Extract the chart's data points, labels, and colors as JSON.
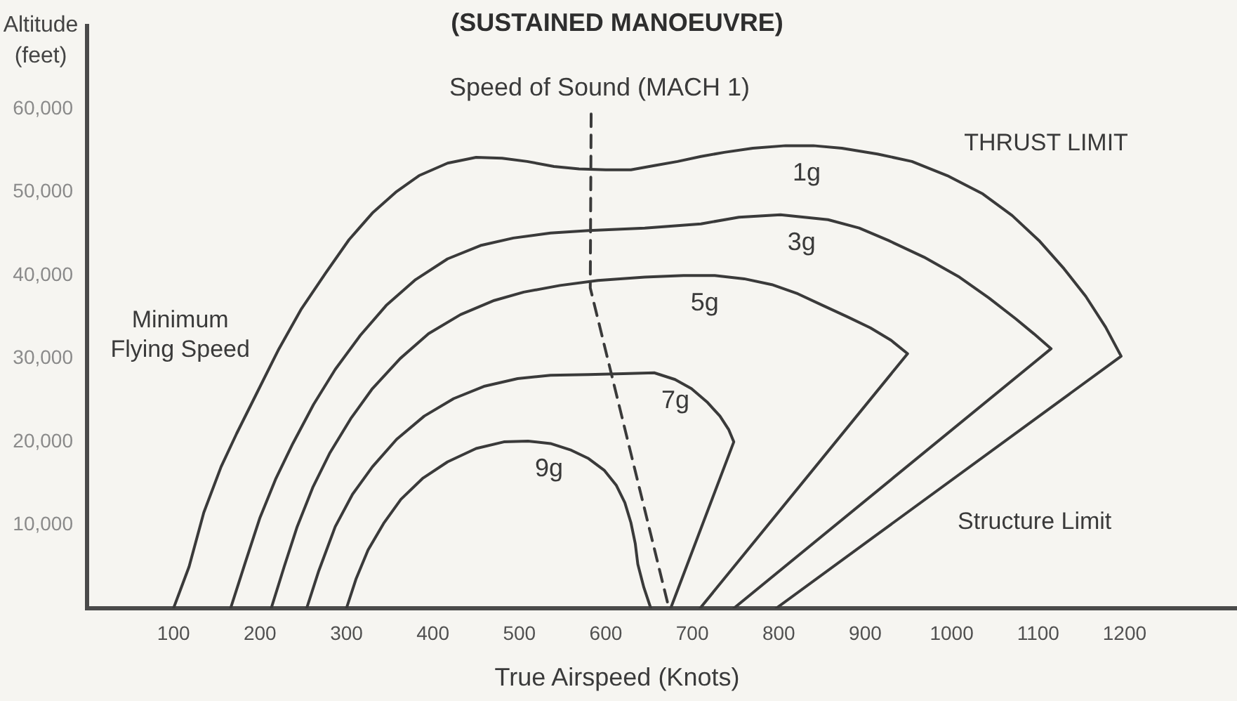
{
  "chart_data": {
    "type": "line",
    "title": "(SUSTAINED MANOEUVRE)",
    "xlabel": "True Airspeed (Knots)",
    "ylabel": "Altitude (feet)",
    "xlim": [
      0,
      1330
    ],
    "ylim": [
      0,
      70000
    ],
    "xticks": [
      100,
      200,
      300,
      400,
      500,
      600,
      700,
      800,
      900,
      1000,
      1100,
      1200
    ],
    "yticks": [
      {
        "value": 10000,
        "label": "10,000"
      },
      {
        "value": 20000,
        "label": "20,000"
      },
      {
        "value": 30000,
        "label": "30,000"
      },
      {
        "value": 40000,
        "label": "40,000"
      },
      {
        "value": 50000,
        "label": "50,000"
      },
      {
        "value": 60000,
        "label": "60,000"
      }
    ],
    "grid": false,
    "legend": false,
    "marker": "none",
    "series": [
      {
        "name": "1g",
        "color": "#3a3a3a",
        "x": [
          100,
          118,
          135,
          155,
          173,
          197,
          221,
          248,
          276,
          303,
          330,
          357,
          384,
          417,
          450,
          480,
          509,
          540,
          569,
          600,
          629,
          656,
          683,
          710,
          737,
          770,
          808,
          840,
          873,
          914,
          954,
          995,
          1036,
          1070,
          1101,
          1130,
          1155,
          1178,
          1196,
          797
        ],
        "values": [
          0,
          5000,
          11500,
          17000,
          21000,
          26000,
          31000,
          36000,
          40300,
          44300,
          47500,
          50000,
          52000,
          53500,
          54200,
          54100,
          53700,
          53100,
          52800,
          52700,
          52700,
          53200,
          53700,
          54300,
          54800,
          55300,
          55600,
          55600,
          55300,
          54600,
          53700,
          52000,
          49800,
          47200,
          44200,
          40800,
          37500,
          33800,
          30300,
          0
        ]
      },
      {
        "name": "3g",
        "color": "#3a3a3a",
        "x": [
          166,
          183,
          200,
          218,
          238,
          262,
          287,
          316,
          346,
          380,
          417,
          455,
          493,
          536,
          580,
          645,
          710,
          754,
          802,
          857,
          893,
          927,
          968,
          1009,
          1043,
          1074,
          1095,
          1115,
          748
        ],
        "values": [
          0,
          5500,
          10900,
          15500,
          19800,
          24500,
          28700,
          32800,
          36400,
          39500,
          42000,
          43600,
          44500,
          45100,
          45400,
          45700,
          46200,
          47000,
          47300,
          46700,
          45700,
          44200,
          42200,
          39800,
          37300,
          34800,
          33000,
          31200,
          0
        ]
      },
      {
        "name": "5g",
        "color": "#3a3a3a",
        "x": [
          213,
          228,
          243,
          261,
          281,
          305,
          330,
          362,
          395,
          432,
          471,
          505,
          547,
          591,
          645,
          690,
          726,
          760,
          792,
          822,
          851,
          880,
          906,
          930,
          949,
          709
        ],
        "values": [
          0,
          5000,
          9800,
          14500,
          18700,
          22800,
          26400,
          30000,
          33000,
          35300,
          37000,
          38000,
          38800,
          39400,
          39800,
          40000,
          40000,
          39600,
          38900,
          37800,
          36400,
          35000,
          33700,
          32200,
          30600,
          0
        ]
      },
      {
        "name": "7g",
        "color": "#3a3a3a",
        "x": [
          254,
          268,
          287,
          307,
          330,
          358,
          390,
          424,
          460,
          498,
          536,
          580,
          620,
          656,
          680,
          699,
          717,
          732,
          742,
          748,
          675
        ],
        "values": [
          0,
          4500,
          9800,
          13700,
          17000,
          20300,
          23100,
          25200,
          26700,
          27600,
          28000,
          28100,
          28200,
          28300,
          27500,
          26400,
          24800,
          23100,
          21500,
          20000,
          0
        ]
      },
      {
        "name": "9g",
        "color": "#3a3a3a",
        "x": [
          300,
          311,
          325,
          343,
          363,
          388,
          417,
          450,
          482,
          510,
          536,
          560,
          580,
          598,
          612,
          622,
          629,
          634,
          637,
          644,
          652
        ],
        "values": [
          0,
          3500,
          7000,
          10200,
          13100,
          15600,
          17600,
          19200,
          20000,
          20100,
          19800,
          19000,
          18000,
          16600,
          14800,
          12700,
          10300,
          7800,
          5300,
          2500,
          0
        ]
      },
      {
        "name": "Speed of Sound (MACH 1)",
        "color": "#3a3a3a",
        "line_style": "dashed",
        "x": [
          583,
          582,
          673
        ],
        "values": [
          59400,
          38500,
          0
        ]
      }
    ],
    "annotations": [
      "Minimum Flying Speed",
      "THRUST LIMIT",
      "Structure Limit"
    ]
  }
}
